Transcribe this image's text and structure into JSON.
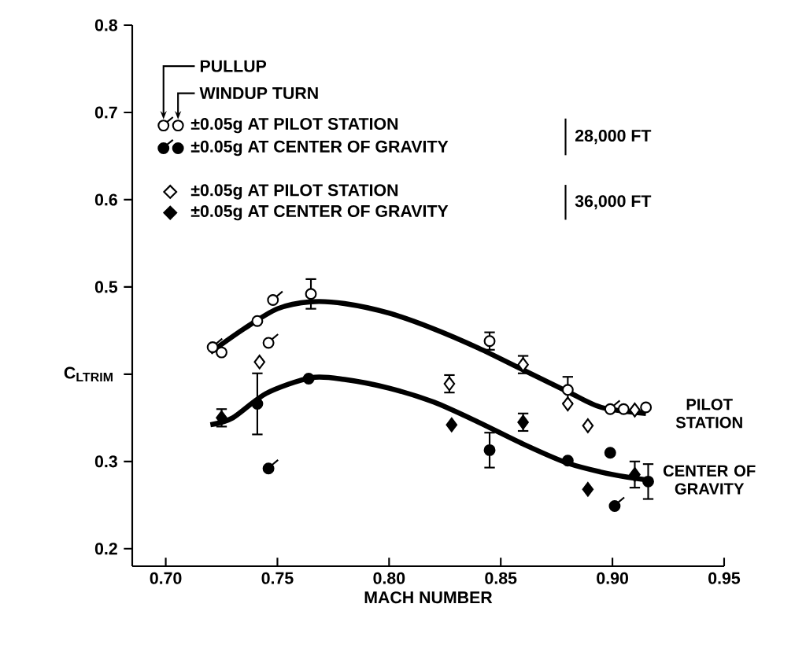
{
  "chart_data": {
    "type": "scatter",
    "xlabel": "MACH NUMBER",
    "ylabel": "C$_{LTRIM}$",
    "xlim": [
      0.685,
      0.95
    ],
    "ylim": [
      0.18,
      0.8
    ],
    "xticks": [
      {
        "value": 0.7,
        "label": "0.70"
      },
      {
        "value": 0.75,
        "label": "0.75"
      },
      {
        "value": 0.8,
        "label": "0.80"
      },
      {
        "value": 0.85,
        "label": "0.85"
      },
      {
        "value": 0.9,
        "label": "0.90"
      },
      {
        "value": 0.95,
        "label": "0.95"
      }
    ],
    "yticks": [
      0.2,
      0.3,
      {
        "value": 0.4,
        "label": null
      },
      0.5,
      0.6,
      0.7,
      0.8
    ],
    "grid": false,
    "legend": "top left",
    "series": [
      {
        "color": "#ffffff",
        "x": [
          0.721,
          0.746,
          0.748,
          0.899
        ],
        "values": [
          0.431,
          0.436,
          0.485,
          0.36
        ]
      },
      {
        "name": "±0.05g AT PILOT STATION",
        "marker": "circle",
        "color": "#ffffff",
        "x": [
          0.725,
          0.741,
          0.765,
          0.845,
          0.88,
          0.905,
          0.915
        ],
        "values": [
          0.425,
          0.461,
          0.492,
          0.438,
          0.382,
          0.36,
          0.362
        ],
        "errors": [
          null,
          null,
          0.017,
          0.01,
          0.015,
          null,
          null
        ]
      },
      {
        "color": "#000000",
        "x": [
          0.746,
          0.901
        ],
        "values": [
          0.292,
          0.249
        ]
      },
      {
        "name": "±0.05g AT CENTER OF GRAVITY",
        "marker": "circle",
        "color": "#000000",
        "x": [
          0.741,
          0.764,
          0.845,
          0.88,
          0.899,
          0.916
        ],
        "values": [
          0.366,
          0.395,
          0.313,
          0.301,
          0.31,
          0.277
        ],
        "errors": [
          0.035,
          null,
          0.02,
          null,
          null,
          0.02
        ]
      },
      {
        "name": "±0.05g AT PILOT STATION",
        "marker": "diamond",
        "color": "#ffffff",
        "x": [
          0.742,
          0.827,
          0.86,
          0.88,
          0.889,
          0.91
        ],
        "values": [
          0.414,
          0.389,
          0.411,
          0.366,
          0.341,
          0.359
        ],
        "errors": [
          null,
          0.01,
          0.01,
          null,
          null,
          null
        ]
      },
      {
        "name": "±0.05g AT CENTER OF GRAVITY",
        "marker": "diamond",
        "color": "#000000",
        "x": [
          0.725,
          0.828,
          0.86,
          0.889,
          0.91
        ],
        "values": [
          0.35,
          0.342,
          0.345,
          0.268,
          0.285
        ],
        "errors": [
          0.01,
          null,
          0.01,
          null,
          0.015
        ]
      },
      {
        "type": "line",
        "color": "#000000",
        "x": [
          0.72,
          0.735,
          0.75,
          0.765,
          0.78,
          0.8,
          0.82,
          0.84,
          0.86,
          0.88,
          0.895,
          0.915
        ],
        "values": [
          0.425,
          0.452,
          0.475,
          0.483,
          0.481,
          0.47,
          0.452,
          0.43,
          0.405,
          0.38,
          0.362,
          0.355
        ]
      },
      {
        "type": "line",
        "color": "#000000",
        "x": [
          0.72,
          0.73,
          0.745,
          0.765,
          0.78,
          0.8,
          0.82,
          0.84,
          0.86,
          0.88,
          0.9,
          0.915
        ],
        "values": [
          0.342,
          0.35,
          0.378,
          0.396,
          0.394,
          0.384,
          0.368,
          0.345,
          0.32,
          0.298,
          0.285,
          0.279
        ]
      }
    ],
    "annotations": [
      "PULLUP",
      "WINDUP TURN",
      "28,000 FT",
      "36,000 FT",
      {
        "text": "PILOT STATION",
        "x": 0.915,
        "y": 0.355
      },
      {
        "text": "CENTER OF GRAVITY",
        "x": 0.915,
        "y": 0.279
      }
    ]
  }
}
